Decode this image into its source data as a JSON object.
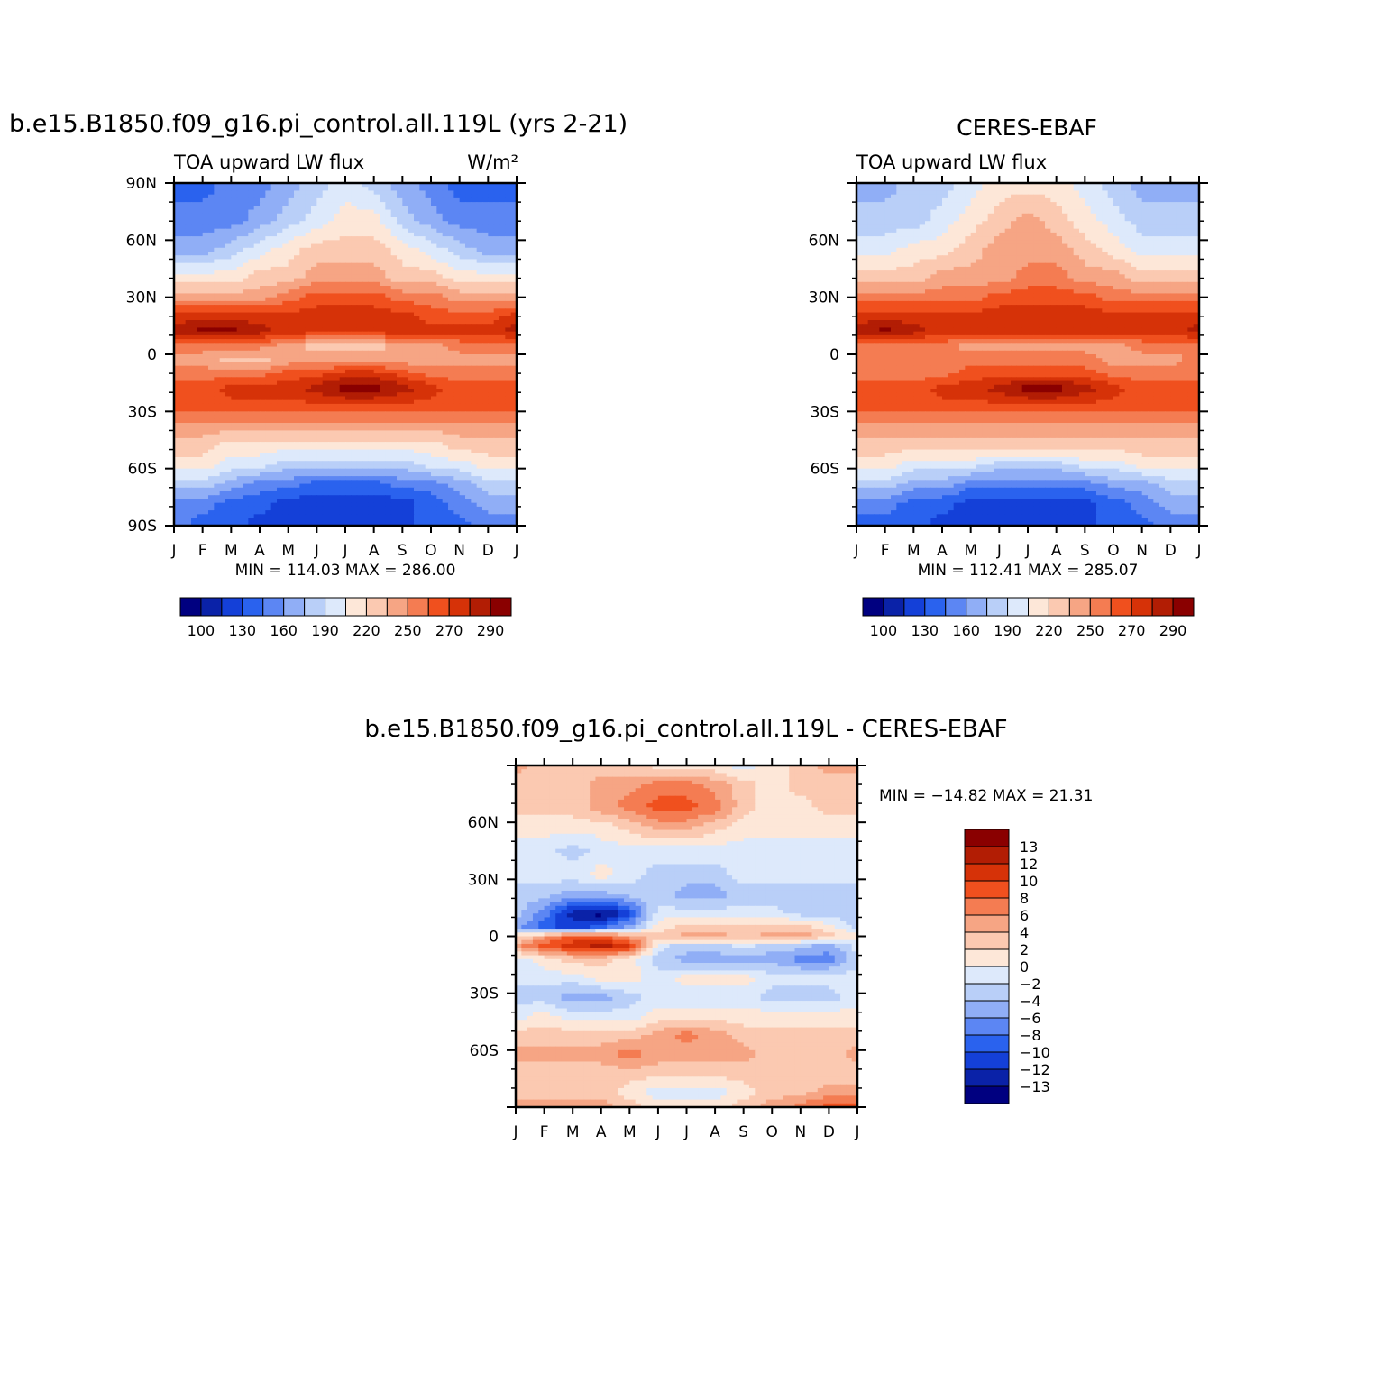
{
  "chart_data": [
    {
      "type": "heatmap",
      "panel": "model",
      "title": "b.e15.B1850.f09_g16.pi_control.all.119L (yrs 2-21)",
      "left_string": "TOA upward LW flux",
      "units": "W/m²",
      "stats": "MIN = 114.03 MAX = 286.00",
      "x_tick_labels": [
        "J",
        "F",
        "M",
        "A",
        "M",
        "J",
        "J",
        "A",
        "S",
        "O",
        "N",
        "D",
        "J"
      ],
      "y_tick_labels": [
        "90N",
        "60N",
        "30N",
        "0",
        "30S",
        "60S",
        "90S"
      ],
      "ylim": [
        -90,
        90
      ],
      "colorbar": {
        "tick_labels": [
          "100",
          "130",
          "160",
          "190",
          "220",
          "250",
          "270",
          "290"
        ],
        "colors": [
          "#000080",
          "#0a22a8",
          "#1440d8",
          "#2a62ee",
          "#5c86f3",
          "#90aef6",
          "#b9cff8",
          "#dde9fb",
          "#fde7d8",
          "#fbc9b1",
          "#f6a584",
          "#f47c52",
          "#f0501e",
          "#d63208",
          "#b21d04",
          "#8a0000"
        ]
      },
      "field_levels": [
        {
          "lat": 90,
          "v": [
            3,
            3,
            4,
            4,
            5,
            6,
            7,
            6,
            5,
            4,
            3,
            3,
            3
          ]
        },
        {
          "lat": 70,
          "v": [
            4,
            4,
            4,
            5,
            6,
            7,
            8,
            8,
            6,
            5,
            4,
            4,
            4
          ]
        },
        {
          "lat": 55,
          "v": [
            5,
            5,
            6,
            7,
            8,
            9,
            9,
            9,
            8,
            7,
            6,
            5,
            5
          ]
        },
        {
          "lat": 40,
          "v": [
            8,
            8,
            8,
            9,
            9,
            10,
            10,
            10,
            9,
            9,
            8,
            8,
            8
          ]
        },
        {
          "lat": 30,
          "v": [
            10,
            10,
            10,
            10,
            11,
            12,
            12,
            12,
            11,
            11,
            10,
            10,
            10
          ]
        },
        {
          "lat": 20,
          "v": [
            13,
            13,
            13,
            13,
            13,
            13,
            13,
            13,
            13,
            12,
            12,
            12,
            13
          ]
        },
        {
          "lat": 12,
          "v": [
            14,
            15,
            15,
            14,
            13,
            13,
            13,
            13,
            13,
            13,
            13,
            13,
            14
          ]
        },
        {
          "lat": 5,
          "v": [
            11,
            11,
            11,
            11,
            10,
            9,
            9,
            9,
            10,
            10,
            11,
            11,
            11
          ]
        },
        {
          "lat": -3,
          "v": [
            10,
            10,
            9,
            9,
            10,
            10,
            10,
            10,
            10,
            10,
            10,
            10,
            10
          ]
        },
        {
          "lat": -10,
          "v": [
            11,
            11,
            11,
            11,
            12,
            12,
            13,
            13,
            12,
            11,
            11,
            11,
            11
          ]
        },
        {
          "lat": -18,
          "v": [
            12,
            12,
            13,
            13,
            13,
            14,
            15,
            15,
            14,
            13,
            12,
            12,
            12
          ]
        },
        {
          "lat": -28,
          "v": [
            12,
            12,
            12,
            12,
            12,
            12,
            12,
            12,
            12,
            12,
            12,
            12,
            12
          ]
        },
        {
          "lat": -38,
          "v": [
            10,
            10,
            10,
            10,
            10,
            10,
            10,
            10,
            10,
            10,
            10,
            10,
            10
          ]
        },
        {
          "lat": -48,
          "v": [
            9,
            9,
            8,
            8,
            8,
            8,
            8,
            8,
            8,
            8,
            9,
            9,
            9
          ]
        },
        {
          "lat": -58,
          "v": [
            8,
            8,
            7,
            7,
            6,
            6,
            6,
            6,
            6,
            7,
            7,
            8,
            8
          ]
        },
        {
          "lat": -68,
          "v": [
            6,
            6,
            5,
            4,
            4,
            3,
            3,
            3,
            4,
            4,
            5,
            6,
            6
          ]
        },
        {
          "lat": -78,
          "v": [
            4,
            4,
            3,
            3,
            2,
            2,
            2,
            2,
            2,
            3,
            4,
            5,
            5
          ]
        },
        {
          "lat": -90,
          "v": [
            4,
            3,
            3,
            2,
            2,
            2,
            2,
            2,
            2,
            3,
            3,
            4,
            4
          ]
        }
      ]
    },
    {
      "type": "heatmap",
      "panel": "obs",
      "title": "CERES-EBAF",
      "left_string": "TOA upward LW flux",
      "stats": "MIN = 112.41 MAX = 285.07",
      "x_tick_labels": [
        "J",
        "F",
        "M",
        "A",
        "M",
        "J",
        "J",
        "A",
        "S",
        "O",
        "N",
        "D",
        "J"
      ],
      "y_tick_labels": [
        "60N",
        "30N",
        "0",
        "30S",
        "60S"
      ],
      "ylim": [
        -90,
        90
      ],
      "colorbar": {
        "tick_labels": [
          "100",
          "130",
          "160",
          "190",
          "220",
          "250",
          "270",
          "290"
        ],
        "colors": [
          "#000080",
          "#0a22a8",
          "#1440d8",
          "#2a62ee",
          "#5c86f3",
          "#90aef6",
          "#b9cff8",
          "#dde9fb",
          "#fde7d8",
          "#fbc9b1",
          "#f6a584",
          "#f47c52",
          "#f0501e",
          "#d63208",
          "#b21d04",
          "#8a0000"
        ]
      },
      "field_levels": [
        {
          "lat": 90,
          "v": [
            5,
            5,
            6,
            6,
            7,
            8,
            8,
            8,
            7,
            6,
            5,
            5,
            5
          ]
        },
        {
          "lat": 70,
          "v": [
            6,
            6,
            6,
            7,
            8,
            9,
            10,
            9,
            8,
            7,
            6,
            6,
            6
          ]
        },
        {
          "lat": 55,
          "v": [
            7,
            7,
            8,
            8,
            9,
            10,
            10,
            10,
            9,
            8,
            7,
            7,
            7
          ]
        },
        {
          "lat": 40,
          "v": [
            9,
            9,
            9,
            10,
            10,
            10,
            11,
            11,
            10,
            10,
            9,
            9,
            9
          ]
        },
        {
          "lat": 30,
          "v": [
            11,
            11,
            11,
            11,
            11,
            12,
            12,
            12,
            12,
            11,
            11,
            11,
            11
          ]
        },
        {
          "lat": 20,
          "v": [
            13,
            13,
            13,
            13,
            13,
            13,
            13,
            13,
            13,
            13,
            13,
            13,
            13
          ]
        },
        {
          "lat": 12,
          "v": [
            14,
            15,
            14,
            13,
            13,
            13,
            13,
            13,
            13,
            13,
            13,
            13,
            14
          ]
        },
        {
          "lat": 5,
          "v": [
            11,
            11,
            11,
            11,
            10,
            10,
            10,
            10,
            10,
            10,
            11,
            11,
            11
          ]
        },
        {
          "lat": -3,
          "v": [
            11,
            11,
            11,
            11,
            11,
            11,
            11,
            11,
            11,
            10,
            10,
            10,
            11
          ]
        },
        {
          "lat": -10,
          "v": [
            11,
            11,
            11,
            11,
            12,
            12,
            12,
            12,
            12,
            11,
            11,
            11,
            11
          ]
        },
        {
          "lat": -18,
          "v": [
            12,
            12,
            12,
            13,
            13,
            14,
            15,
            15,
            14,
            13,
            12,
            12,
            12
          ]
        },
        {
          "lat": -28,
          "v": [
            12,
            12,
            12,
            12,
            12,
            12,
            12,
            12,
            12,
            12,
            12,
            12,
            12
          ]
        },
        {
          "lat": -38,
          "v": [
            10,
            10,
            10,
            10,
            10,
            10,
            10,
            10,
            10,
            10,
            10,
            10,
            10
          ]
        },
        {
          "lat": -48,
          "v": [
            9,
            9,
            9,
            9,
            9,
            9,
            9,
            9,
            9,
            9,
            9,
            9,
            9
          ]
        },
        {
          "lat": -58,
          "v": [
            8,
            8,
            7,
            7,
            7,
            6,
            6,
            6,
            7,
            7,
            8,
            8,
            8
          ]
        },
        {
          "lat": -68,
          "v": [
            6,
            6,
            5,
            5,
            4,
            4,
            4,
            4,
            4,
            5,
            5,
            6,
            6
          ]
        },
        {
          "lat": -78,
          "v": [
            4,
            4,
            3,
            3,
            2,
            2,
            2,
            2,
            2,
            3,
            4,
            5,
            5
          ]
        },
        {
          "lat": -90,
          "v": [
            3,
            3,
            3,
            2,
            2,
            2,
            2,
            2,
            2,
            3,
            3,
            4,
            4
          ]
        }
      ]
    },
    {
      "type": "heatmap",
      "panel": "diff",
      "title": "b.e15.B1850.f09_g16.pi_control.all.119L - CERES-EBAF",
      "stats": "MIN = −14.82 MAX =  21.31",
      "x_tick_labels": [
        "J",
        "F",
        "M",
        "A",
        "M",
        "J",
        "J",
        "A",
        "S",
        "O",
        "N",
        "D",
        "J"
      ],
      "y_tick_labels": [
        "60N",
        "30N",
        "0",
        "30S",
        "60S"
      ],
      "ylim": [
        -90,
        90
      ],
      "colorbar": {
        "tick_labels": [
          "13",
          "12",
          "10",
          "8",
          "6",
          "4",
          "2",
          "0",
          "−2",
          "−4",
          "−6",
          "−8",
          "−10",
          "−12",
          "−13"
        ],
        "colors": [
          "#8a0000",
          "#b21d04",
          "#d63208",
          "#f0501e",
          "#f47c52",
          "#f6a584",
          "#fbc9b1",
          "#fde7d8",
          "#dde9fb",
          "#b9cff8",
          "#90aef6",
          "#5c86f3",
          "#2a62ee",
          "#1440d8",
          "#0a22a8",
          "#000080"
        ]
      },
      "field_levels": [
        {
          "lat": 90,
          "v": [
            5,
            6,
            6,
            6,
            6,
            7,
            7,
            7,
            8,
            7,
            6,
            5,
            5
          ]
        },
        {
          "lat": 80,
          "v": [
            6,
            6,
            6,
            5,
            5,
            4,
            4,
            5,
            6,
            7,
            6,
            6,
            6
          ]
        },
        {
          "lat": 68,
          "v": [
            6,
            6,
            6,
            5,
            4,
            3,
            3,
            4,
            6,
            7,
            7,
            6,
            6
          ]
        },
        {
          "lat": 58,
          "v": [
            7,
            7,
            7,
            7,
            6,
            5,
            5,
            6,
            7,
            7,
            7,
            7,
            7
          ]
        },
        {
          "lat": 45,
          "v": [
            8,
            8,
            9,
            8,
            8,
            8,
            8,
            8,
            8,
            8,
            8,
            8,
            8
          ]
        },
        {
          "lat": 32,
          "v": [
            8,
            8,
            8,
            7,
            8,
            9,
            9,
            9,
            8,
            8,
            8,
            8,
            8
          ]
        },
        {
          "lat": 22,
          "v": [
            9,
            9,
            10,
            10,
            9,
            9,
            10,
            10,
            9,
            9,
            9,
            9,
            9
          ]
        },
        {
          "lat": 12,
          "v": [
            9,
            11,
            14,
            15,
            13,
            8,
            8,
            8,
            8,
            8,
            9,
            9,
            9
          ]
        },
        {
          "lat": 5,
          "v": [
            10,
            12,
            13,
            12,
            10,
            7,
            6,
            6,
            6,
            6,
            6,
            7,
            9
          ]
        },
        {
          "lat": 0,
          "v": [
            7,
            5,
            3,
            3,
            5,
            6,
            5,
            5,
            6,
            5,
            5,
            6,
            7
          ]
        },
        {
          "lat": -5,
          "v": [
            5,
            3,
            2,
            1,
            2,
            8,
            9,
            9,
            8,
            9,
            9,
            10,
            8
          ]
        },
        {
          "lat": -12,
          "v": [
            8,
            7,
            6,
            6,
            7,
            9,
            10,
            10,
            10,
            10,
            11,
            11,
            9
          ]
        },
        {
          "lat": -22,
          "v": [
            8,
            8,
            8,
            7,
            7,
            8,
            7,
            7,
            7,
            8,
            8,
            8,
            8
          ]
        },
        {
          "lat": -32,
          "v": [
            9,
            9,
            10,
            10,
            9,
            8,
            8,
            8,
            8,
            9,
            9,
            9,
            8
          ]
        },
        {
          "lat": -42,
          "v": [
            8,
            7,
            8,
            8,
            8,
            7,
            7,
            7,
            7,
            7,
            7,
            7,
            7
          ]
        },
        {
          "lat": -52,
          "v": [
            6,
            6,
            6,
            6,
            6,
            5,
            4,
            5,
            6,
            6,
            6,
            6,
            6
          ]
        },
        {
          "lat": -62,
          "v": [
            5,
            5,
            5,
            5,
            4,
            5,
            5,
            5,
            5,
            6,
            6,
            6,
            5
          ]
        },
        {
          "lat": -72,
          "v": [
            6,
            6,
            6,
            6,
            6,
            6,
            6,
            6,
            6,
            6,
            6,
            6,
            6
          ]
        },
        {
          "lat": -82,
          "v": [
            6,
            6,
            6,
            6,
            7,
            8,
            8,
            8,
            7,
            6,
            6,
            5,
            5
          ]
        },
        {
          "lat": -90,
          "v": [
            5,
            5,
            5,
            5,
            6,
            7,
            7,
            7,
            6,
            5,
            4,
            3,
            3
          ]
        }
      ]
    }
  ]
}
